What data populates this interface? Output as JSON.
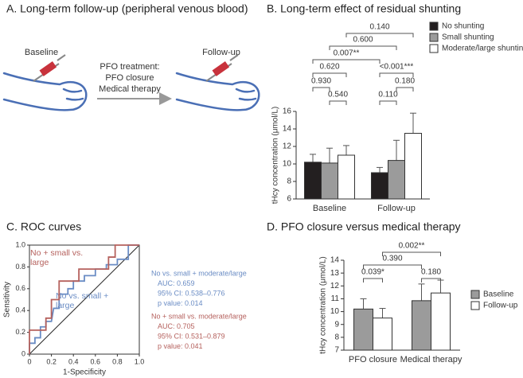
{
  "panel_a": {
    "title": "A. Long-term follow-up (peripheral venous blood)",
    "left_label": "Baseline",
    "middle_label": [
      "PFO treatment:",
      "PFO closure",
      "Medical therapy"
    ],
    "right_label": "Follow-up"
  },
  "chart_data": [
    {
      "type": "bar",
      "title": "B. Long-term effect of residual shunting",
      "categories": [
        "Baseline",
        "Follow-up"
      ],
      "series": [
        {
          "name": "No shunting",
          "color": "#231f20",
          "values": [
            10.2,
            9.0
          ],
          "errors": [
            0.9,
            0.6
          ]
        },
        {
          "name": "Small shunting",
          "color": "#9b9b9b",
          "values": [
            10.1,
            10.4
          ],
          "errors": [
            1.7,
            2.3
          ]
        },
        {
          "name": "Moderate/large shunting",
          "color": "#ffffff",
          "values": [
            11.0,
            13.5
          ],
          "errors": [
            1.1,
            2.3
          ]
        }
      ],
      "ylabel": "tHcy concentration (μmol/L)",
      "ylim": [
        6,
        16
      ],
      "yticks": [
        6,
        8,
        10,
        12,
        14,
        16
      ],
      "legend": "top-right",
      "annotations": [
        "0.140",
        "0.600",
        "0.007**",
        "0.620",
        "<0.001***",
        "0.930",
        "0.180",
        "0.540",
        "0.110"
      ]
    },
    {
      "type": "line",
      "title": "C. ROC curves",
      "xlabel": "1-Specificity",
      "ylabel": "Sensitivity",
      "xlim": [
        0,
        1
      ],
      "ylim": [
        0,
        1
      ],
      "xticks": [
        0,
        0.2,
        0.4,
        0.6,
        0.8,
        {
          "value": 1,
          "label": "1.0"
        }
      ],
      "yticks": [
        0,
        0.2,
        0.4,
        0.6,
        0.8,
        {
          "value": 1,
          "label": "1.0"
        }
      ],
      "series": [
        {
          "name": "No vs. small + large",
          "color": "#6a8cc4",
          "x": [
            0,
            0,
            0.05,
            0.05,
            0.1,
            0.1,
            0.15,
            0.15,
            0.2,
            0.22,
            0.27,
            0.27,
            0.35,
            0.35,
            0.4,
            0.4,
            0.5,
            0.5,
            0.6,
            0.6,
            0.7,
            0.7,
            0.8,
            0.8,
            0.9,
            0.9,
            1
          ],
          "values": [
            0,
            0.1,
            0.1,
            0.15,
            0.15,
            0.25,
            0.25,
            0.3,
            0.3,
            0.42,
            0.42,
            0.55,
            0.55,
            0.6,
            0.6,
            0.67,
            0.67,
            0.72,
            0.72,
            0.78,
            0.78,
            0.82,
            0.82,
            0.87,
            0.87,
            1,
            1
          ]
        },
        {
          "name": "No + small vs. large",
          "color": "#b5615d",
          "x": [
            0,
            0,
            0.15,
            0.15,
            0.2,
            0.2,
            0.27,
            0.27,
            0.45,
            0.45,
            0.72,
            0.72,
            0.78,
            0.78,
            1
          ],
          "values": [
            0,
            0.22,
            0.22,
            0.33,
            0.33,
            0.5,
            0.5,
            0.67,
            0.67,
            0.78,
            0.78,
            0.89,
            0.89,
            1,
            1
          ]
        }
      ],
      "annotations": [
        [
          "No vs. small + moderate/large",
          "AUC: 0.659",
          "95% CI: 0.538–0.776",
          "p value: 0.014"
        ],
        [
          "No + small vs. moderate/large",
          "AUC: 0.705",
          "95% CI: 0.531–0.879",
          "p value: 0.041"
        ]
      ]
    },
    {
      "type": "bar",
      "title": "D. PFO closure versus medical therapy",
      "categories": [
        "PFO closure",
        "Medical therapy"
      ],
      "series": [
        {
          "name": "Baseline",
          "color": "#9b9b9b",
          "values": [
            10.2,
            10.85
          ],
          "errors": [
            0.8,
            1.3
          ]
        },
        {
          "name": "Follow-up",
          "color": "#ffffff",
          "values": [
            9.5,
            11.45
          ],
          "errors": [
            0.75,
            1.0
          ]
        }
      ],
      "ylabel": "tHcy concentration (μmol/L)",
      "ylim": [
        7,
        14
      ],
      "yticks": [
        7,
        8,
        9,
        10,
        11,
        12,
        13,
        14
      ],
      "legend": "right",
      "annotations": [
        "0.002**",
        "0.390",
        "0.039*",
        "0.180"
      ]
    }
  ]
}
